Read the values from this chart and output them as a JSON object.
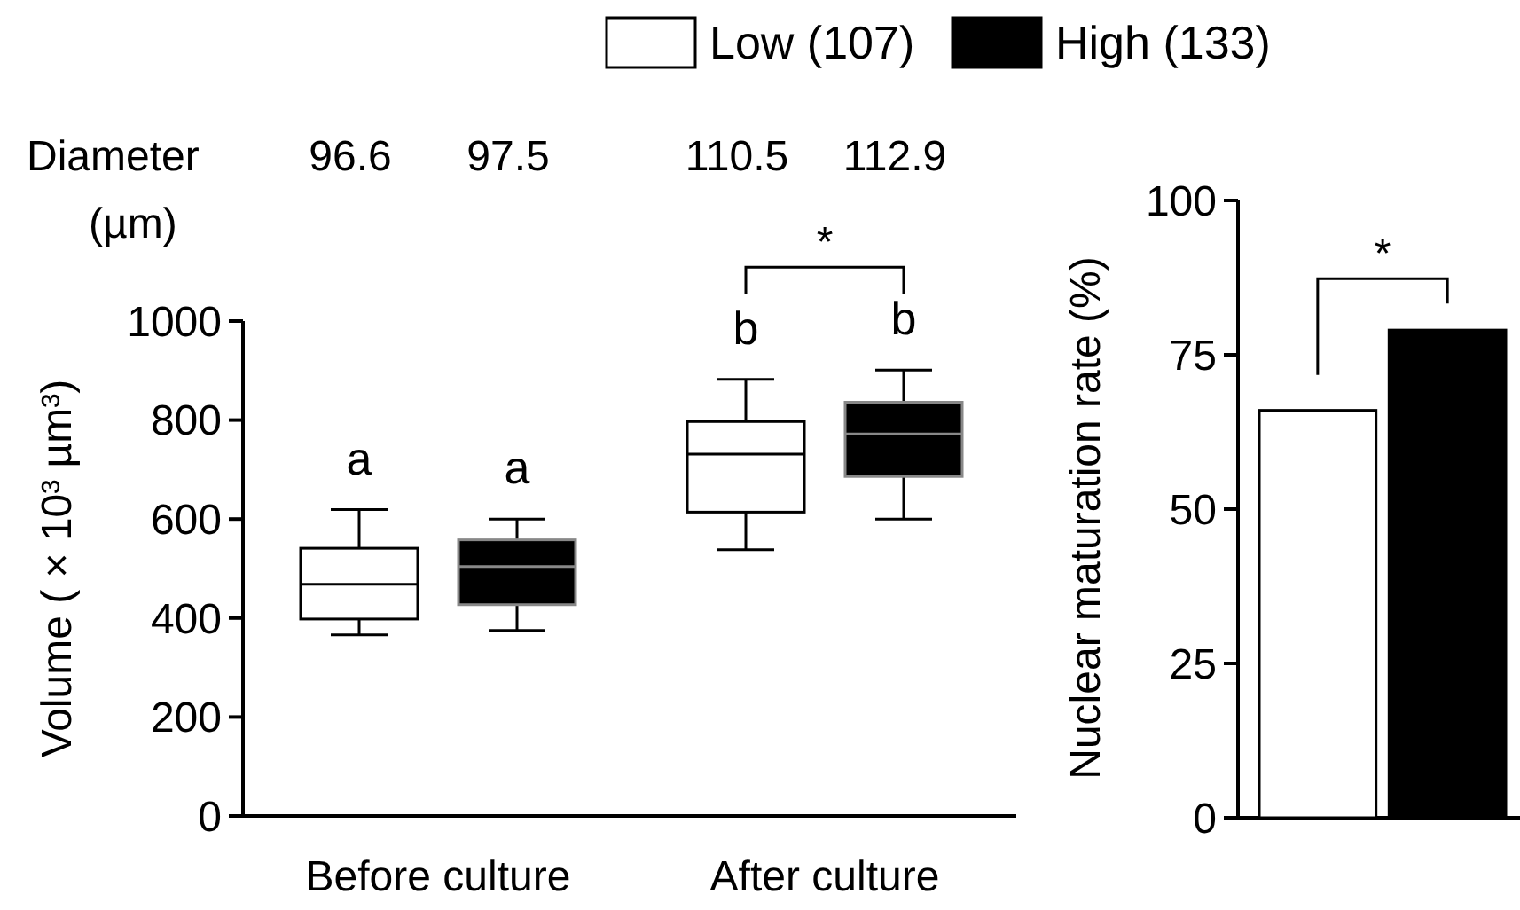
{
  "chart_data": [
    {
      "type": "box",
      "categories": [
        "Before culture",
        "After culture"
      ],
      "ylabel": "Volume ( × 10³ µm³)",
      "ylim": [
        0,
        1000
      ],
      "yticks": [
        0,
        200,
        400,
        600,
        800,
        1000
      ],
      "legend": "top",
      "series": [
        {
          "name": "Low (107)",
          "color": "#ffffff",
          "boxes": [
            {
              "low": 366,
              "q1": 398,
              "median": 468,
              "q3": 541,
              "high": 619
            },
            {
              "low": 538,
              "q1": 614,
              "median": 731,
              "q3": 797,
              "high": 882
            }
          ]
        },
        {
          "name": "High (133)",
          "color": "#000000",
          "boxes": [
            {
              "low": 375,
              "q1": 427,
              "median": 504,
              "q3": 558,
              "high": 600
            },
            {
              "low": 600,
              "q1": 686,
              "median": 772,
              "q3": 836,
              "high": 901
            }
          ]
        }
      ],
      "annotations": [
        "Diameter",
        "(µm)",
        "96.6",
        "97.5",
        "110.5",
        "112.9",
        "a",
        "a",
        "b",
        "b",
        "*"
      ]
    },
    {
      "type": "bar",
      "categories": [
        null,
        null
      ],
      "values": [
        66,
        79
      ],
      "colors": [
        "#ffffff",
        "#000000"
      ],
      "ylabel": "Nuclear maturation rate (%)",
      "ylim": [
        0,
        100
      ],
      "yticks": [
        0,
        25,
        50,
        75,
        100
      ],
      "annotations": [
        "*"
      ]
    }
  ]
}
